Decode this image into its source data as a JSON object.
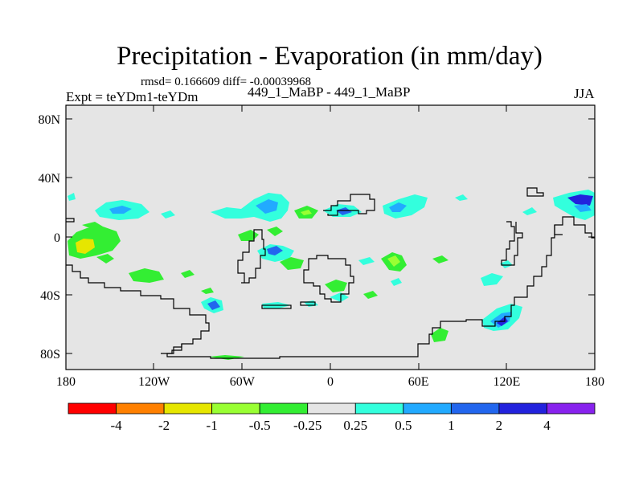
{
  "map": {
    "title": "Precipitation - Evaporation (in mm/day)",
    "stats": "rmsd= 0.166609 diff= -0.00039968",
    "expt": "Expt = teYDm1-teYDm",
    "runs": "449_1_MaBP - 449_1_MaBP",
    "season": "JJA",
    "background_color": "#e5e5e5",
    "lat_ticks": [
      "80N",
      "40N",
      "0",
      "40S",
      "80S"
    ],
    "lon_ticks": [
      "180",
      "120W",
      "60W",
      "0",
      "60E",
      "120E",
      "180"
    ]
  },
  "colorbar": {
    "colors": [
      "#ff0000",
      "#ff8000",
      "#e6e600",
      "#99ff33",
      "#33ee33",
      "#e5e5e5",
      "#33ffdd",
      "#22aaff",
      "#2266ee",
      "#2222dd",
      "#8822ee"
    ],
    "labels": [
      "-4",
      "-2",
      "-1",
      "-0.5",
      "-0.25",
      "0.25",
      "0.5",
      "1",
      "2",
      "4"
    ]
  }
}
